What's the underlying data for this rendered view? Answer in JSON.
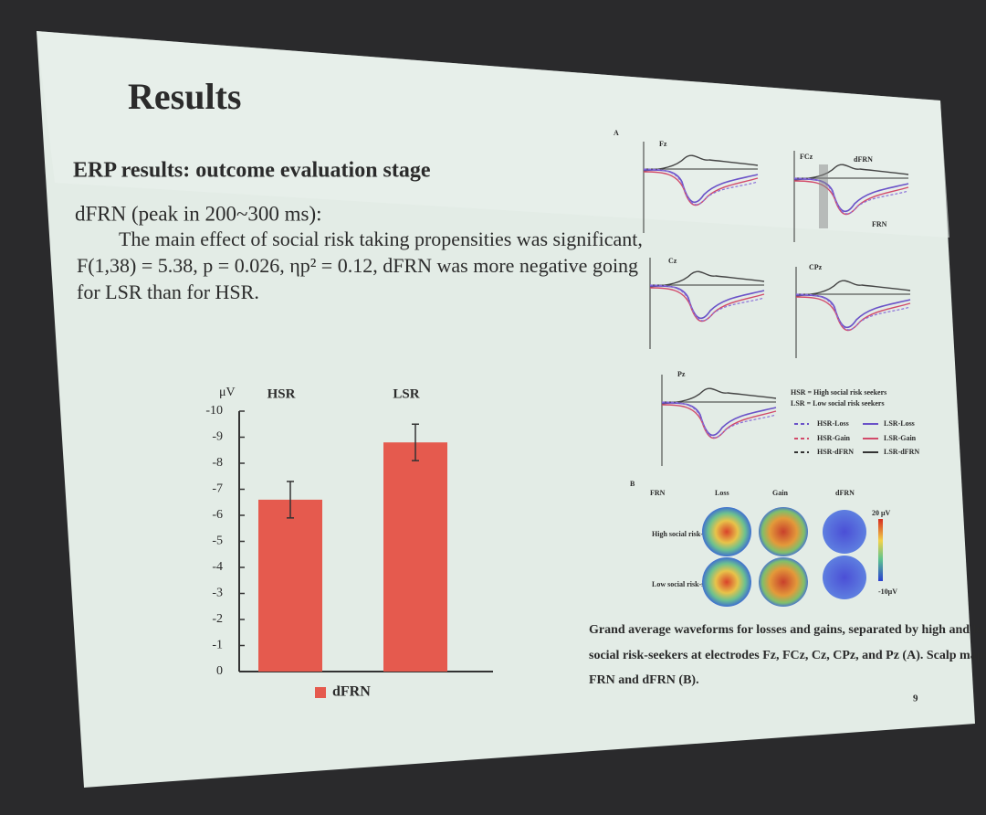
{
  "slide": {
    "title": "Results",
    "heading": "ERP results: outcome evaluation stage",
    "subheading": "dFRN (peak in 200~300 ms):",
    "body": [
      "The main effect of social risk taking propensities was significant,",
      "F(1,38) = 5.38, p = 0.026, ηp² = 0.12, dFRN was more negative going",
      "for LSR than for HSR."
    ],
    "page_number": "9"
  },
  "figure": {
    "panel_labels": [
      "A",
      "B"
    ],
    "electrodes": [
      "Fz",
      "FCz",
      "Cz",
      "CPz",
      "Pz"
    ],
    "fcz_annotations": [
      "dFRN",
      "FRN"
    ],
    "legend_key": [
      "HSR = High social risk seekers",
      "LSR = Low social risk seekers"
    ],
    "legend": [
      "HSR-Loss",
      "LSR-Loss",
      "HSR-Gain",
      "LSR-Gain",
      "HSR-dFRN",
      "LSR-dFRN"
    ],
    "map_columns": [
      "FRN",
      "Loss",
      "Gain",
      "dFRN"
    ],
    "map_rows": [
      "High social risk-seekers",
      "Low social risk-seekers"
    ],
    "scale_labels": [
      "20 μV",
      "-10μV"
    ],
    "caption": [
      "Grand average waveforms for losses and gains, separated by high and low",
      "social risk-seekers at electrodes Fz, FCz, Cz, CPz, and Pz (A). Scalp maps of",
      "FRN and dFRN (B)."
    ]
  },
  "chart_data": {
    "type": "bar",
    "y_label": "μV",
    "categories": [
      "HSR",
      "LSR"
    ],
    "series": [
      {
        "name": "dFRN",
        "color": "#e55a4e",
        "values": [
          -6.6,
          -8.8
        ],
        "errors": [
          0.7,
          0.7
        ]
      }
    ],
    "ylim": [
      0,
      -10
    ],
    "yticks": [
      0,
      -1,
      -2,
      -3,
      -4,
      -5,
      -6,
      -7,
      -8,
      -9,
      -10
    ]
  }
}
